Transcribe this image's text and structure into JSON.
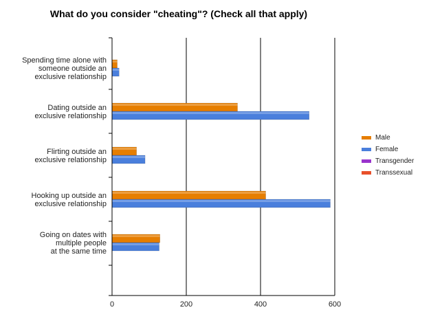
{
  "chart_data": {
    "type": "bar",
    "orientation": "horizontal",
    "title": "What do you consider \"cheating\"? (Check all that apply)",
    "categories": [
      [
        "Spending time alone with",
        "someone outside an",
        "exclusive relationship"
      ],
      [
        "Dating outside an",
        "exclusive relationship"
      ],
      [
        "Flirting outside an",
        "exclusive relationship"
      ],
      [
        "Hooking up outside an",
        "exclusive relationship"
      ],
      [
        "Going on dates with",
        "multiple people",
        "at the same time"
      ]
    ],
    "series": [
      {
        "name": "Male",
        "color": "#e67e00",
        "values": [
          14,
          338,
          66,
          414,
          129
        ]
      },
      {
        "name": "Female",
        "color": "#4a7fdc",
        "values": [
          19,
          531,
          89,
          588,
          127
        ]
      },
      {
        "name": "Transgender",
        "color": "#9933cc",
        "values": [
          0,
          0,
          0,
          0,
          0
        ]
      },
      {
        "name": "Transsexual",
        "color": "#e8502a",
        "values": [
          0,
          0,
          0,
          0,
          0
        ]
      }
    ],
    "xlim": [
      0,
      600
    ],
    "xticks": [
      "0",
      "200",
      "400",
      "600"
    ],
    "grid": true,
    "legend_position": "right"
  }
}
